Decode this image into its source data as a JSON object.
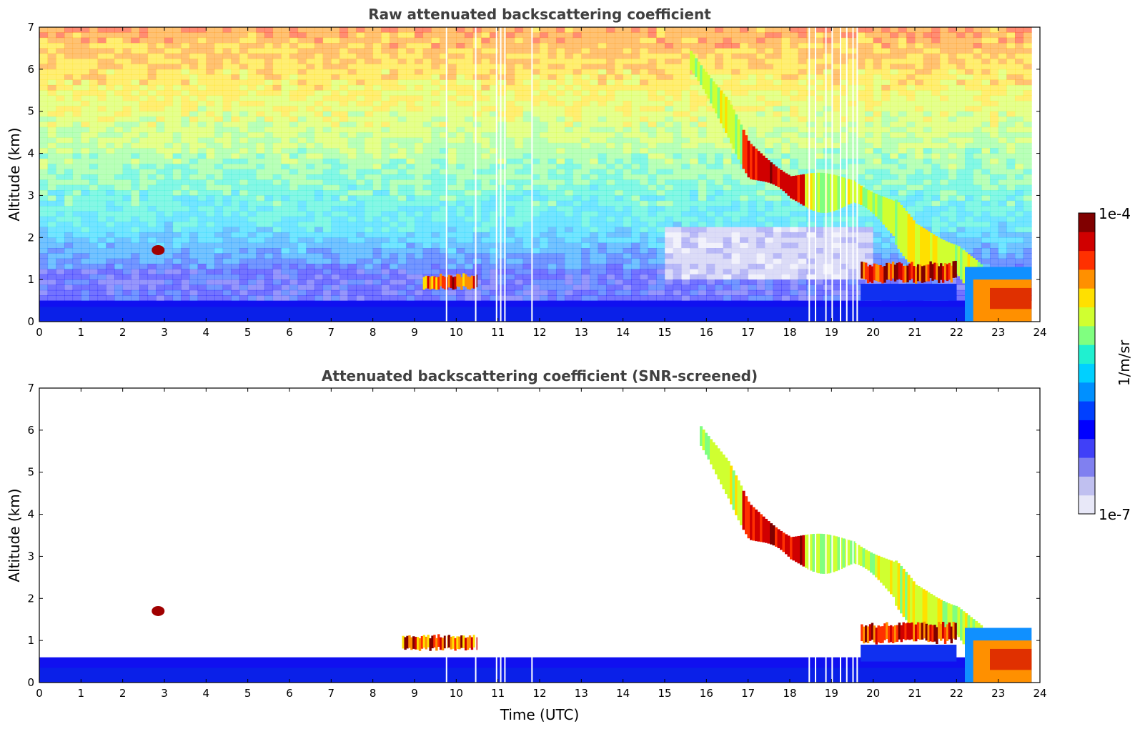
{
  "chart_data": [
    {
      "type": "heatmap",
      "title": "Raw attenuated backscattering coefficient",
      "xlabel": "",
      "ylabel": "Altitude (km)",
      "xlim": [
        0,
        24
      ],
      "ylim": [
        0,
        7
      ],
      "xticks": [
        "0",
        "1",
        "2",
        "3",
        "4",
        "5",
        "6",
        "7",
        "8",
        "9",
        "10",
        "11",
        "12",
        "13",
        "14",
        "15",
        "16",
        "17",
        "18",
        "19",
        "20",
        "21",
        "22",
        "23",
        "24"
      ],
      "yticks": [
        "0",
        "1",
        "2",
        "3",
        "4",
        "5",
        "6",
        "7"
      ],
      "features": [
        {
          "label": "boundary layer",
          "x_range": [
            0,
            23.8
          ],
          "alt_km_top": 0.5,
          "value": "1e-6"
        },
        {
          "label": "isolated cloud",
          "x": 2.85,
          "alt_km": 1.7,
          "value": "1e-4"
        },
        {
          "label": "low cloud",
          "x_range": [
            9.2,
            10.5
          ],
          "alt_km": 0.95,
          "value": "5e-5"
        },
        {
          "label": "descending cirrus",
          "points": [
            [
              15.6,
              6.3
            ],
            [
              16.5,
              5.0
            ],
            [
              17.0,
              4.0
            ],
            [
              18.0,
              3.3
            ],
            [
              19.5,
              3.2
            ],
            [
              20.5,
              2.6
            ],
            [
              21.0,
              2.0
            ],
            [
              22.0,
              1.6
            ],
            [
              22.6,
              1.0
            ]
          ],
          "value": "2e-5"
        },
        {
          "label": "low cloud 2",
          "x_range": [
            19.7,
            22.0
          ],
          "alt_km": 1.1,
          "value": "5e-5"
        },
        {
          "label": "rain/precip",
          "x_range": [
            22.3,
            23.8
          ],
          "alt_km_top": 1.3,
          "value": "5e-5"
        }
      ],
      "gaps_hours": [
        9.75,
        10.45,
        10.95,
        11.05,
        11.15,
        11.8,
        18.45,
        18.6,
        18.85,
        19.0,
        19.2,
        19.35,
        19.5,
        19.6
      ]
    },
    {
      "type": "heatmap",
      "title": "Attenuated backscattering coefficient (SNR-screened)",
      "xlabel": "Time (UTC)",
      "ylabel": "Altitude (km)",
      "xlim": [
        0,
        24
      ],
      "ylim": [
        0,
        7
      ],
      "xticks": [
        "0",
        "1",
        "2",
        "3",
        "4",
        "5",
        "6",
        "7",
        "8",
        "9",
        "10",
        "11",
        "12",
        "13",
        "14",
        "15",
        "16",
        "17",
        "18",
        "19",
        "20",
        "21",
        "22",
        "23",
        "24"
      ],
      "yticks": [
        "0",
        "1",
        "2",
        "3",
        "4",
        "5",
        "6",
        "7"
      ],
      "features": [
        {
          "label": "boundary layer",
          "x_range": [
            0,
            23.8
          ],
          "alt_km_top": 0.6,
          "value": "1e-6"
        },
        {
          "label": "isolated cloud",
          "x": 2.85,
          "alt_km": 1.7,
          "value": "1e-4"
        },
        {
          "label": "low cloud",
          "x_range": [
            8.7,
            10.6
          ],
          "alt_km": 0.9,
          "value": "5e-5"
        },
        {
          "label": "descending cirrus",
          "points": [
            [
              15.7,
              6.1
            ],
            [
              16.5,
              5.0
            ],
            [
              17.0,
              4.0
            ],
            [
              18.0,
              3.3
            ],
            [
              19.5,
              3.2
            ],
            [
              20.5,
              2.6
            ],
            [
              21.0,
              2.0
            ],
            [
              22.0,
              1.6
            ],
            [
              22.6,
              1.0
            ]
          ],
          "value": "2e-5"
        },
        {
          "label": "low cloud 2",
          "x_range": [
            19.7,
            22.0
          ],
          "alt_km": 1.1,
          "value": "5e-5"
        },
        {
          "label": "rain/precip",
          "x_range": [
            22.3,
            23.8
          ],
          "alt_km_top": 1.3,
          "value": "5e-5"
        }
      ]
    }
  ],
  "colorbar": {
    "label": "1/m/sr",
    "max_label": "1e-4",
    "min_label": "1e-7",
    "colors": [
      "#e8e8f8",
      "#c0c0f0",
      "#8080f0",
      "#4040f8",
      "#0000ff",
      "#0040ff",
      "#0090ff",
      "#00d0ff",
      "#20f0d0",
      "#80ff80",
      "#d0ff30",
      "#ffe000",
      "#ff9000",
      "#ff3000",
      "#d00000",
      "#800000"
    ]
  }
}
